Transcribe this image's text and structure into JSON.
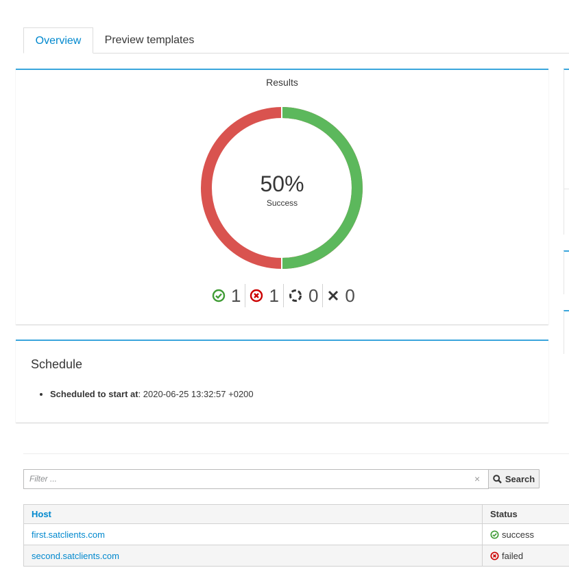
{
  "tabs": [
    {
      "label": "Overview",
      "active": true
    },
    {
      "label": "Preview templates",
      "active": false
    }
  ],
  "results": {
    "title": "Results",
    "percent_label": "50%",
    "subtitle": "Success",
    "success_fraction": 0.5,
    "colors": {
      "success": "#5cb85c",
      "failed": "#d9534f",
      "accent": "#39a5dc",
      "link": "#0088ce"
    },
    "counts": [
      {
        "icon": "check-circle-icon",
        "value": "1"
      },
      {
        "icon": "times-circle-icon",
        "value": "1"
      },
      {
        "icon": "spinner-icon",
        "value": "0"
      },
      {
        "icon": "close-icon",
        "value": "0"
      }
    ]
  },
  "schedule": {
    "title": "Schedule",
    "label": "Scheduled to start at",
    "value": ": 2020-06-25 13:32:57 +0200"
  },
  "filter": {
    "placeholder": "Filter ...",
    "clear_symbol": "×",
    "search_label": "Search"
  },
  "table": {
    "headers": {
      "host": "Host",
      "status": "Status"
    },
    "rows": [
      {
        "host": "first.satclients.com",
        "status": "success",
        "status_icon": "check-circle-icon"
      },
      {
        "host": "second.satclients.com",
        "status": "failed",
        "status_icon": "times-circle-icon"
      }
    ]
  }
}
